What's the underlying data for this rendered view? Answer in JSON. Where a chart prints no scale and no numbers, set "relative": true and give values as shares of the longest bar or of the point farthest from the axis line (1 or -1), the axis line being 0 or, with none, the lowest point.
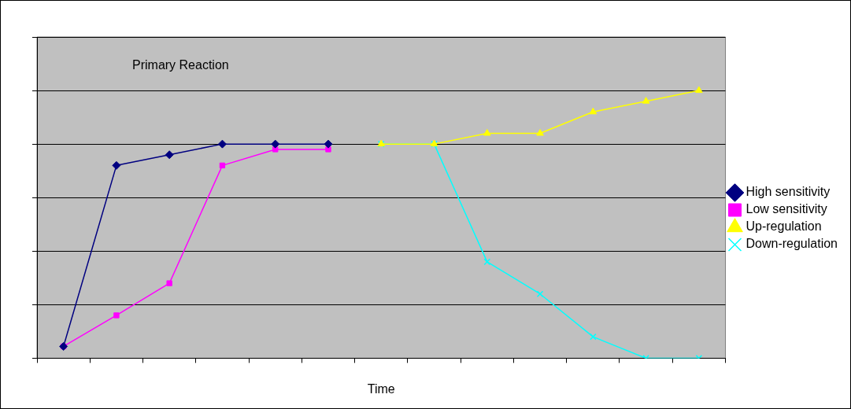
{
  "chart_data": {
    "type": "line",
    "title": "Primary Reaction",
    "xlabel": "Time",
    "relative": true,
    "grid": "y",
    "legend": "right",
    "categories": [
      null,
      null,
      null,
      null,
      null,
      null,
      null,
      null,
      null,
      null,
      null,
      null,
      null
    ],
    "series": [
      {
        "name": "High sensitivity",
        "color": "#000080",
        "marker": "diamond",
        "values": [
          0.044,
          0.72,
          0.76,
          0.8,
          0.8,
          0.8,
          null,
          null,
          null,
          null,
          null,
          null,
          null
        ]
      },
      {
        "name": "Low sensitivity",
        "color": "#ff00ff",
        "marker": "square",
        "values": [
          0.044,
          0.16,
          0.28,
          0.72,
          0.78,
          0.78,
          null,
          null,
          null,
          null,
          null,
          null,
          null
        ]
      },
      {
        "name": "Up-regulation",
        "color": "#ffff00",
        "marker": "triangle",
        "values": [
          null,
          null,
          null,
          null,
          null,
          null,
          0.8,
          0.8,
          0.84,
          0.84,
          0.92,
          0.96,
          1
        ]
      },
      {
        "name": "Down-regulation",
        "color": "#00ffff",
        "marker": "cross",
        "values": [
          null,
          null,
          null,
          null,
          null,
          null,
          0.8,
          0.8,
          0.36,
          0.24,
          0.08,
          0,
          0
        ]
      }
    ]
  }
}
